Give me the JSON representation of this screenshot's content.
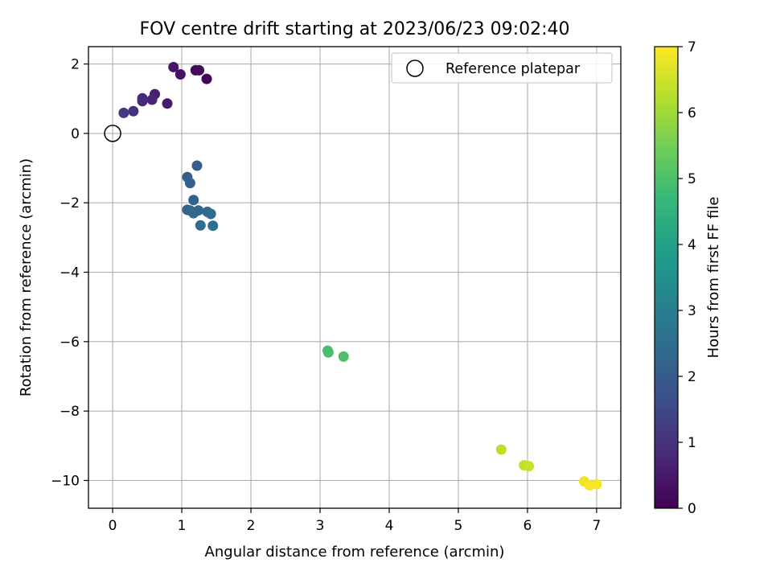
{
  "chart_data": {
    "type": "scatter",
    "title": "FOV centre drift starting at 2023/06/23 09:02:40",
    "xlabel": "Angular distance from reference (arcmin)",
    "ylabel": "Rotation from reference (arcmin)",
    "xlim": [
      -0.35,
      7.35
    ],
    "ylim": [
      -10.8,
      2.5
    ],
    "xticks": [
      0,
      1,
      2,
      3,
      4,
      5,
      6,
      7
    ],
    "yticks": [
      -10,
      -8,
      -6,
      -4,
      -2,
      0,
      2
    ],
    "xtick_labels": [
      "0",
      "1",
      "2",
      "3",
      "4",
      "5",
      "6",
      "7"
    ],
    "ytick_labels": [
      "−10",
      "−8",
      "−6",
      "−4",
      "−2",
      "0",
      "2"
    ],
    "grid": true,
    "colormap": "viridis",
    "colorbar": {
      "label": "Hours from first FF file",
      "range": [
        0,
        7
      ],
      "ticks": [
        0,
        1,
        2,
        3,
        4,
        5,
        6,
        7
      ],
      "tick_labels": [
        "0",
        "1",
        "2",
        "3",
        "4",
        "5",
        "6",
        "7"
      ]
    },
    "reference": {
      "x": 0,
      "y": 0,
      "label": "Reference platepar"
    },
    "legend": {
      "position": "top-right",
      "entries": [
        "Reference platepar"
      ]
    },
    "points": [
      {
        "x": 1.36,
        "y": 1.57,
        "t": 0.05
      },
      {
        "x": 1.2,
        "y": 1.82,
        "t": 0.15
      },
      {
        "x": 1.25,
        "y": 1.82,
        "t": 0.2
      },
      {
        "x": 0.98,
        "y": 1.7,
        "t": 0.3
      },
      {
        "x": 0.88,
        "y": 1.91,
        "t": 0.4
      },
      {
        "x": 0.79,
        "y": 0.86,
        "t": 0.5
      },
      {
        "x": 0.61,
        "y": 1.13,
        "t": 0.6
      },
      {
        "x": 0.57,
        "y": 0.97,
        "t": 0.7
      },
      {
        "x": 0.43,
        "y": 1.01,
        "t": 0.8
      },
      {
        "x": 0.43,
        "y": 0.93,
        "t": 0.85
      },
      {
        "x": 0.3,
        "y": 0.64,
        "t": 1.0
      },
      {
        "x": 0.16,
        "y": 0.59,
        "t": 1.2
      },
      {
        "x": 1.22,
        "y": -0.93,
        "t": 2.0
      },
      {
        "x": 1.08,
        "y": -1.26,
        "t": 2.05
      },
      {
        "x": 1.12,
        "y": -1.43,
        "t": 2.1
      },
      {
        "x": 1.17,
        "y": -1.92,
        "t": 2.15
      },
      {
        "x": 1.08,
        "y": -2.2,
        "t": 2.2
      },
      {
        "x": 1.12,
        "y": -2.22,
        "t": 2.25
      },
      {
        "x": 1.24,
        "y": -2.22,
        "t": 2.3
      },
      {
        "x": 1.17,
        "y": -2.3,
        "t": 2.35
      },
      {
        "x": 1.37,
        "y": -2.26,
        "t": 2.4
      },
      {
        "x": 1.42,
        "y": -2.32,
        "t": 2.45
      },
      {
        "x": 1.27,
        "y": -2.65,
        "t": 2.5
      },
      {
        "x": 1.45,
        "y": -2.66,
        "t": 2.55
      },
      {
        "x": 3.11,
        "y": -6.26,
        "t": 4.9
      },
      {
        "x": 3.12,
        "y": -6.31,
        "t": 4.95
      },
      {
        "x": 3.34,
        "y": -6.43,
        "t": 5.0
      },
      {
        "x": 5.62,
        "y": -9.11,
        "t": 6.3
      },
      {
        "x": 5.95,
        "y": -9.56,
        "t": 6.4
      },
      {
        "x": 6.02,
        "y": -9.59,
        "t": 6.45
      },
      {
        "x": 6.82,
        "y": -10.03,
        "t": 6.85
      },
      {
        "x": 6.9,
        "y": -10.14,
        "t": 6.9
      },
      {
        "x": 7.0,
        "y": -10.11,
        "t": 6.95
      }
    ]
  }
}
